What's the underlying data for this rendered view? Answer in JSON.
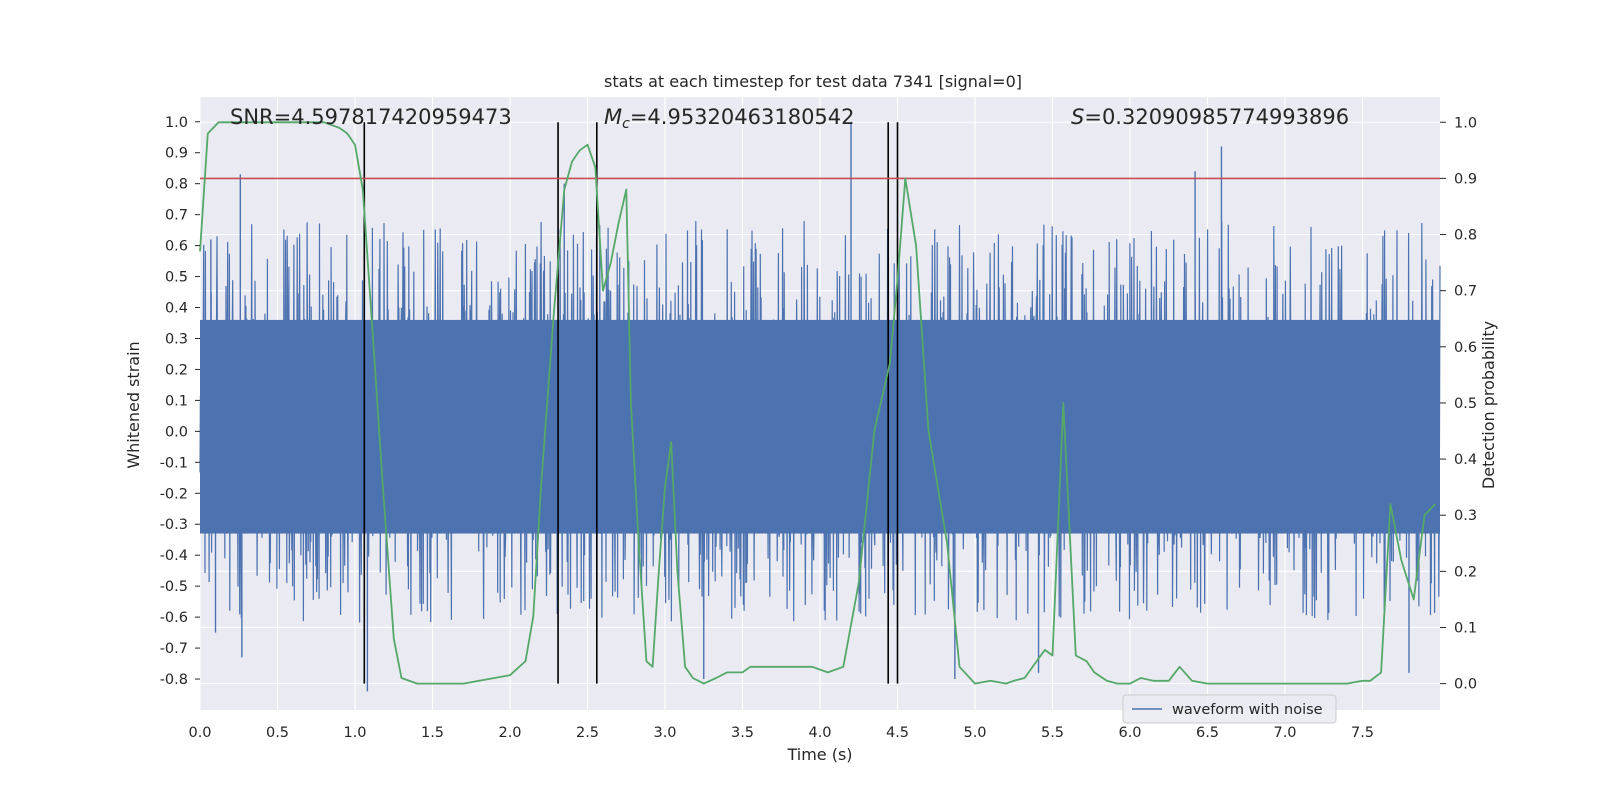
{
  "chart_data": {
    "type": "line",
    "title": "stats at each timestep for test data 7341 [signal=0]",
    "xlabel": "Time (s)",
    "ylabel_left": "Whitened strain",
    "ylabel_right": "Detection probability",
    "xlim": [
      0.0,
      8.0
    ],
    "ylim_left": [
      -0.9,
      1.08
    ],
    "ylim_right": [
      -0.047,
      1.045
    ],
    "grid": true,
    "legend_position": "bottom-right",
    "x_ticks": [
      "0.0",
      "0.5",
      "1.0",
      "1.5",
      "2.0",
      "2.5",
      "3.0",
      "3.5",
      "4.0",
      "4.5",
      "5.0",
      "5.5",
      "6.0",
      "6.5",
      "7.0",
      "7.5"
    ],
    "y_ticks_left": [
      "1.0",
      "0.9",
      "0.8",
      "0.7",
      "0.6",
      "0.5",
      "0.4",
      "0.3",
      "0.2",
      "0.1",
      "0.0",
      "-0.1",
      "-0.2",
      "-0.3",
      "-0.4",
      "-0.5",
      "-0.6",
      "-0.7",
      "-0.8"
    ],
    "y_ticks_right": [
      "1.0",
      "0.9",
      "0.8",
      "0.7",
      "0.6",
      "0.5",
      "0.4",
      "0.3",
      "0.2",
      "0.1",
      "0.0"
    ],
    "annotations": {
      "snr": "SNR=4.597817420959473",
      "mc_symbol": "M",
      "mc_sub": "c",
      "mc_value": "=4.95320463180542",
      "s_symbol": "S",
      "s_value": "=0.32090985774993896"
    },
    "series": [
      {
        "name": "waveform with noise",
        "axis": "left",
        "color": "#4c72b0",
        "style": "dense noise trace",
        "core_band": [
          -0.33,
          0.36
        ],
        "typical_peaks": [
          -0.62,
          0.68
        ],
        "outliers": [
          {
            "x": 0.07,
            "y": 0.62
          },
          {
            "x": 0.1,
            "y": -0.65
          },
          {
            "x": 0.26,
            "y": 0.83
          },
          {
            "x": 0.27,
            "y": -0.73
          },
          {
            "x": 1.08,
            "y": -0.84
          },
          {
            "x": 2.35,
            "y": 0.8
          },
          {
            "x": 3.25,
            "y": -0.8
          },
          {
            "x": 4.2,
            "y": 1.0
          },
          {
            "x": 4.87,
            "y": -0.8
          },
          {
            "x": 5.41,
            "y": -0.78
          },
          {
            "x": 6.42,
            "y": 0.84
          },
          {
            "x": 6.59,
            "y": 0.92
          },
          {
            "x": 7.8,
            "y": -0.78
          }
        ]
      },
      {
        "axis": "right",
        "color": "#55a868",
        "x": [
          0.0,
          0.05,
          0.12,
          0.2,
          0.4,
          0.6,
          0.8,
          0.9,
          0.95,
          1.0,
          1.05,
          1.12,
          1.18,
          1.25,
          1.3,
          1.4,
          1.5,
          1.6,
          1.7,
          1.8,
          1.9,
          2.0,
          2.1,
          2.15,
          2.2,
          2.28,
          2.35,
          2.4,
          2.45,
          2.5,
          2.55,
          2.6,
          2.65,
          2.7,
          2.75,
          2.78,
          2.83,
          2.88,
          2.92,
          2.96,
          3.0,
          3.04,
          3.08,
          3.13,
          3.18,
          3.25,
          3.33,
          3.4,
          3.5,
          3.55,
          3.65,
          3.75,
          3.85,
          3.95,
          4.05,
          4.15,
          4.25,
          4.35,
          4.45,
          4.5,
          4.55,
          4.62,
          4.7,
          4.82,
          4.9,
          5.0,
          5.1,
          5.2,
          5.25,
          5.32,
          5.45,
          5.5,
          5.57,
          5.65,
          5.72,
          5.77,
          5.85,
          5.92,
          6.0,
          6.07,
          6.15,
          6.25,
          6.32,
          6.4,
          6.5,
          6.7,
          7.0,
          7.2,
          7.4,
          7.5,
          7.55,
          7.62,
          7.68,
          7.75,
          7.83,
          7.9,
          7.97
        ],
        "y": [
          0.77,
          0.98,
          1.0,
          1.0,
          1.0,
          1.0,
          1.0,
          0.99,
          0.98,
          0.96,
          0.88,
          0.6,
          0.35,
          0.08,
          0.01,
          0.0,
          0.0,
          0.0,
          0.0,
          0.005,
          0.01,
          0.015,
          0.04,
          0.12,
          0.35,
          0.65,
          0.88,
          0.93,
          0.95,
          0.96,
          0.92,
          0.7,
          0.75,
          0.82,
          0.88,
          0.5,
          0.25,
          0.04,
          0.03,
          0.2,
          0.35,
          0.43,
          0.2,
          0.03,
          0.01,
          0.0,
          0.01,
          0.02,
          0.02,
          0.03,
          0.03,
          0.03,
          0.03,
          0.03,
          0.02,
          0.03,
          0.18,
          0.45,
          0.57,
          0.72,
          0.9,
          0.78,
          0.45,
          0.25,
          0.03,
          0.0,
          0.005,
          0.0,
          0.005,
          0.01,
          0.06,
          0.05,
          0.5,
          0.05,
          0.04,
          0.02,
          0.005,
          0.0,
          0.0,
          0.01,
          0.005,
          0.005,
          0.03,
          0.005,
          0.0,
          0.0,
          0.0,
          0.0,
          0.0,
          0.005,
          0.005,
          0.02,
          0.32,
          0.22,
          0.15,
          0.3,
          0.32
        ]
      },
      {
        "axis": "right",
        "color": "#c44e52",
        "style": "threshold line",
        "y": 0.9
      }
    ],
    "vertical_lines": [
      1.06,
      2.31,
      2.56,
      4.44,
      4.5
    ],
    "vertical_line_color": "#000000"
  }
}
